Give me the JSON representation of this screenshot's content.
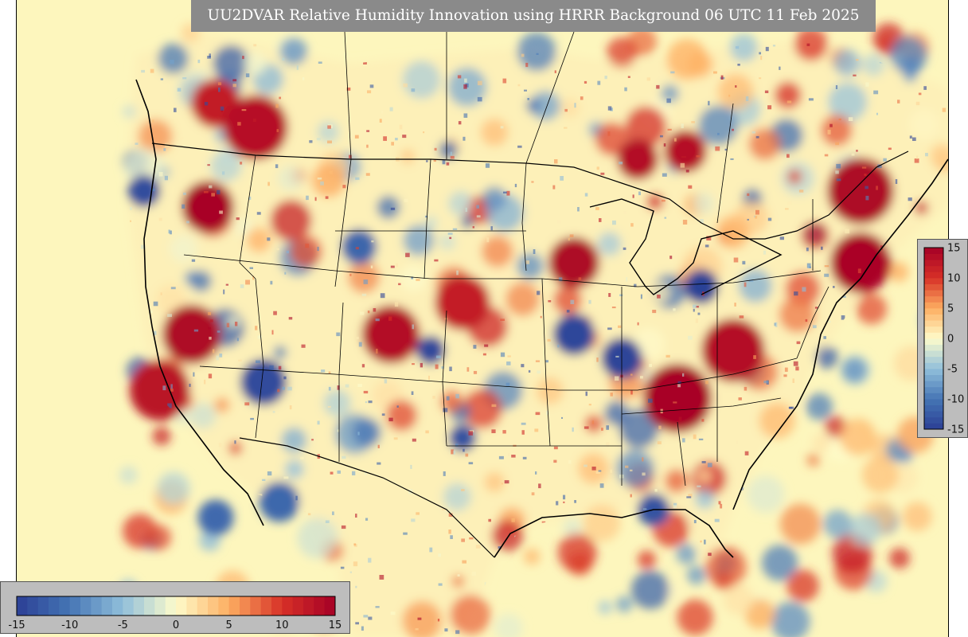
{
  "title": "UU2DVAR Relative Humidity Innovation using HRRR Background 06 UTC 11 Feb 2025",
  "colorbar": {
    "min": -15,
    "max": 15,
    "step": 1,
    "vertical_ticks": [
      "15",
      "10",
      "5",
      "0",
      "-5",
      "-10",
      "-15"
    ],
    "horizontal_ticks": [
      "-15",
      "-10",
      "-5",
      "0",
      "5",
      "10",
      "15"
    ]
  },
  "colors": {
    "ocean_background": "#fdf6bd",
    "strong_negative": "#2b3f95",
    "neutral": "#fefccb",
    "strong_positive": "#a50026",
    "panel": "#bdbdbd",
    "title_background": "#8a8a8a"
  }
}
